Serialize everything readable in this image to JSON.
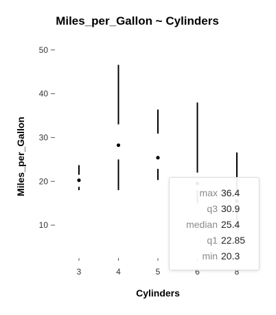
{
  "chart_data": {
    "type": "boxplot",
    "title": "Miles_per_Gallon ~ Cylinders",
    "xlabel": "Cylinders",
    "ylabel": "Miles_per_Gallon",
    "categories": [
      "3",
      "4",
      "5",
      "6",
      "8"
    ],
    "ylim": [
      5,
      52
    ],
    "y_ticks": [
      10,
      20,
      30,
      40,
      50
    ],
    "boxes": [
      {
        "category": "3",
        "min": 18,
        "q1": 18.75,
        "median": 20.25,
        "q3": 21.5,
        "max": 23.7
      },
      {
        "category": "4",
        "min": 18,
        "q1": 25,
        "median": 28.25,
        "q3": 33,
        "max": 46.6
      },
      {
        "category": "5",
        "min": 20.3,
        "q1": 22.85,
        "median": 25.4,
        "q3": 30.9,
        "max": 36.4
      },
      {
        "category": "6",
        "min": 15,
        "q1": 18,
        "median": 19.5,
        "q3": 22,
        "max": 38
      },
      {
        "category": "8",
        "min": 9,
        "q1": 14,
        "median": 15.5,
        "q3": 17,
        "max": 26.6
      }
    ],
    "grid": false
  },
  "tooltip": {
    "rows": [
      {
        "key": "max",
        "value": "36.4"
      },
      {
        "key": "q3",
        "value": "30.9"
      },
      {
        "key": "median",
        "value": "25.4"
      },
      {
        "key": "q1",
        "value": "22.85"
      },
      {
        "key": "min",
        "value": "20.3"
      }
    ]
  }
}
